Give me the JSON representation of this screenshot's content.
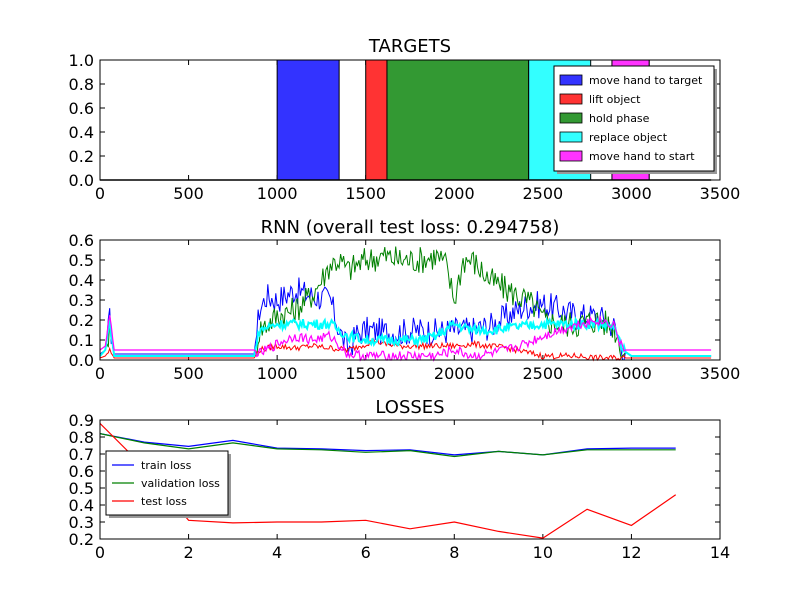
{
  "chart_data": [
    {
      "type": "bar",
      "title": "TARGETS",
      "xlabel": "",
      "ylabel": "",
      "xlim": [
        0,
        3500
      ],
      "ylim": [
        0,
        1.0
      ],
      "xticks": [
        "0",
        "500",
        "1000",
        "1500",
        "2000",
        "2500",
        "3000",
        "3500"
      ],
      "yticks": [
        "0.0",
        "0.2",
        "0.4",
        "0.6",
        "0.8",
        "1.0"
      ],
      "grid": false,
      "legend_position": "top-right",
      "series": [
        {
          "name": "move hand to target",
          "color": "#3333ff",
          "segments": [
            [
              1000,
              1350
            ],
            [
              2900,
              3100
            ]
          ]
        },
        {
          "name": "lift object",
          "color": "#ff3333",
          "segments": [
            [
              1500,
              1620
            ]
          ]
        },
        {
          "name": "hold phase",
          "color": "#339933",
          "segments": [
            [
              1620,
              2420
            ]
          ]
        },
        {
          "name": "replace object",
          "color": "#33ffff",
          "segments": [
            [
              2420,
              2770
            ]
          ]
        },
        {
          "name": "move hand to start",
          "color": "#ff33ff",
          "segments": [
            [
              2890,
              3100
            ]
          ]
        }
      ]
    },
    {
      "type": "line",
      "title": "RNN (overall test loss: 0.294758)",
      "xlabel": "",
      "ylabel": "",
      "xlim": [
        0,
        3500
      ],
      "ylim": [
        0,
        0.6
      ],
      "xticks": [
        "0",
        "500",
        "1000",
        "1500",
        "2000",
        "2500",
        "3000",
        "3500"
      ],
      "yticks": [
        "0.0",
        "0.1",
        "0.2",
        "0.3",
        "0.4",
        "0.5",
        "0.6"
      ],
      "grid": false,
      "series": [
        {
          "color": "#0000ff",
          "x": [
            0,
            30,
            55,
            80,
            870,
            900,
            940,
            1000,
            1100,
            1200,
            1300,
            1350,
            1400,
            1450,
            1500,
            1600,
            1700,
            1800,
            1900,
            2000,
            2100,
            2200,
            2300,
            2400,
            2500,
            2600,
            2700,
            2800,
            2850,
            2900,
            2950,
            3000,
            3450
          ],
          "y": [
            0.03,
            0.05,
            0.2,
            0.03,
            0.03,
            0.25,
            0.32,
            0.3,
            0.35,
            0.32,
            0.3,
            0.15,
            0.05,
            0.13,
            0.15,
            0.14,
            0.14,
            0.15,
            0.14,
            0.15,
            0.15,
            0.17,
            0.22,
            0.27,
            0.28,
            0.25,
            0.22,
            0.22,
            0.2,
            0.17,
            0.05,
            0.02,
            0.02
          ]
        },
        {
          "color": "#008000",
          "x": [
            0,
            30,
            55,
            80,
            870,
            900,
            1000,
            1100,
            1200,
            1250,
            1300,
            1350,
            1400,
            1500,
            1600,
            1700,
            1800,
            1900,
            1950,
            2000,
            2050,
            2100,
            2200,
            2300,
            2400,
            2450,
            2500,
            2600,
            2700,
            2800,
            2900,
            2950,
            3000,
            3450
          ],
          "y": [
            0.02,
            0.05,
            0.15,
            0.02,
            0.02,
            0.15,
            0.22,
            0.25,
            0.33,
            0.4,
            0.48,
            0.5,
            0.45,
            0.5,
            0.52,
            0.5,
            0.5,
            0.52,
            0.48,
            0.3,
            0.5,
            0.5,
            0.4,
            0.35,
            0.3,
            0.27,
            0.2,
            0.18,
            0.18,
            0.2,
            0.17,
            0.05,
            0.02,
            0.02
          ]
        },
        {
          "color": "#ff0000",
          "x": [
            0,
            30,
            55,
            80,
            870,
            900,
            1000,
            1100,
            1200,
            1300,
            1400,
            1500,
            1550,
            1600,
            1700,
            1800,
            1900,
            2000,
            2100,
            2200,
            2300,
            2400,
            2500,
            2600,
            2700,
            2800,
            2900,
            2950,
            3450
          ],
          "y": [
            0.01,
            0.02,
            0.05,
            0.01,
            0.01,
            0.05,
            0.07,
            0.06,
            0.07,
            0.06,
            0.05,
            0.08,
            0.1,
            0.08,
            0.07,
            0.07,
            0.07,
            0.07,
            0.08,
            0.07,
            0.06,
            0.04,
            0.02,
            0.02,
            0.02,
            0.01,
            0.01,
            0.01,
            0.01
          ]
        },
        {
          "color": "#00ffff",
          "x": [
            0,
            30,
            55,
            80,
            870,
            900,
            1000,
            1100,
            1200,
            1300,
            1400,
            1500,
            1600,
            1700,
            1800,
            1900,
            2000,
            2100,
            2200,
            2300,
            2400,
            2500,
            2600,
            2700,
            2800,
            2900,
            2950,
            3000,
            3450
          ],
          "y": [
            0.02,
            0.05,
            0.2,
            0.02,
            0.02,
            0.15,
            0.18,
            0.18,
            0.18,
            0.18,
            0.12,
            0.1,
            0.1,
            0.1,
            0.1,
            0.12,
            0.18,
            0.15,
            0.15,
            0.16,
            0.17,
            0.18,
            0.18,
            0.18,
            0.18,
            0.17,
            0.05,
            0.02,
            0.02
          ]
        },
        {
          "color": "#ff00ff",
          "x": [
            0,
            30,
            55,
            80,
            870,
            900,
            1000,
            1100,
            1200,
            1300,
            1400,
            1500,
            1600,
            1700,
            1800,
            1900,
            2000,
            2100,
            2200,
            2300,
            2400,
            2500,
            2600,
            2700,
            2800,
            2900,
            2950,
            3000,
            3450
          ],
          "y": [
            0.05,
            0.07,
            0.22,
            0.05,
            0.05,
            0.03,
            0.08,
            0.12,
            0.1,
            0.12,
            0.03,
            0.02,
            0.02,
            0.02,
            0.02,
            0.02,
            0.05,
            0.02,
            0.03,
            0.05,
            0.08,
            0.12,
            0.15,
            0.18,
            0.2,
            0.18,
            0.05,
            0.05,
            0.05
          ]
        }
      ]
    },
    {
      "type": "line",
      "title": "LOSSES",
      "xlabel": "",
      "ylabel": "",
      "xlim": [
        0,
        14
      ],
      "ylim": [
        0.2,
        0.9
      ],
      "xticks": [
        "0",
        "2",
        "4",
        "6",
        "8",
        "10",
        "12",
        "14"
      ],
      "yticks": [
        "0.2",
        "0.3",
        "0.4",
        "0.5",
        "0.6",
        "0.7",
        "0.8",
        "0.9"
      ],
      "grid": false,
      "legend_position": "middle-left",
      "series": [
        {
          "name": "train loss",
          "color": "#0000ff",
          "x": [
            0,
            1,
            2,
            3,
            4,
            5,
            6,
            7,
            8,
            9,
            10,
            11,
            12,
            13
          ],
          "y": [
            0.82,
            0.77,
            0.745,
            0.78,
            0.735,
            0.73,
            0.72,
            0.725,
            0.695,
            0.715,
            0.695,
            0.73,
            0.735,
            0.735
          ]
        },
        {
          "name": "validation loss",
          "color": "#008000",
          "x": [
            0,
            1,
            2,
            3,
            4,
            5,
            6,
            7,
            8,
            9,
            10,
            11,
            12,
            13
          ],
          "y": [
            0.82,
            0.765,
            0.73,
            0.765,
            0.73,
            0.725,
            0.71,
            0.72,
            0.685,
            0.715,
            0.695,
            0.725,
            0.725,
            0.725
          ]
        },
        {
          "name": "test loss",
          "color": "#ff0000",
          "x": [
            0,
            1,
            2,
            3,
            4,
            5,
            6,
            7,
            8,
            9,
            10,
            11,
            12,
            13
          ],
          "y": [
            0.88,
            0.62,
            0.31,
            0.295,
            0.3,
            0.3,
            0.31,
            0.26,
            0.3,
            0.245,
            0.205,
            0.375,
            0.28,
            0.46
          ]
        }
      ]
    }
  ]
}
